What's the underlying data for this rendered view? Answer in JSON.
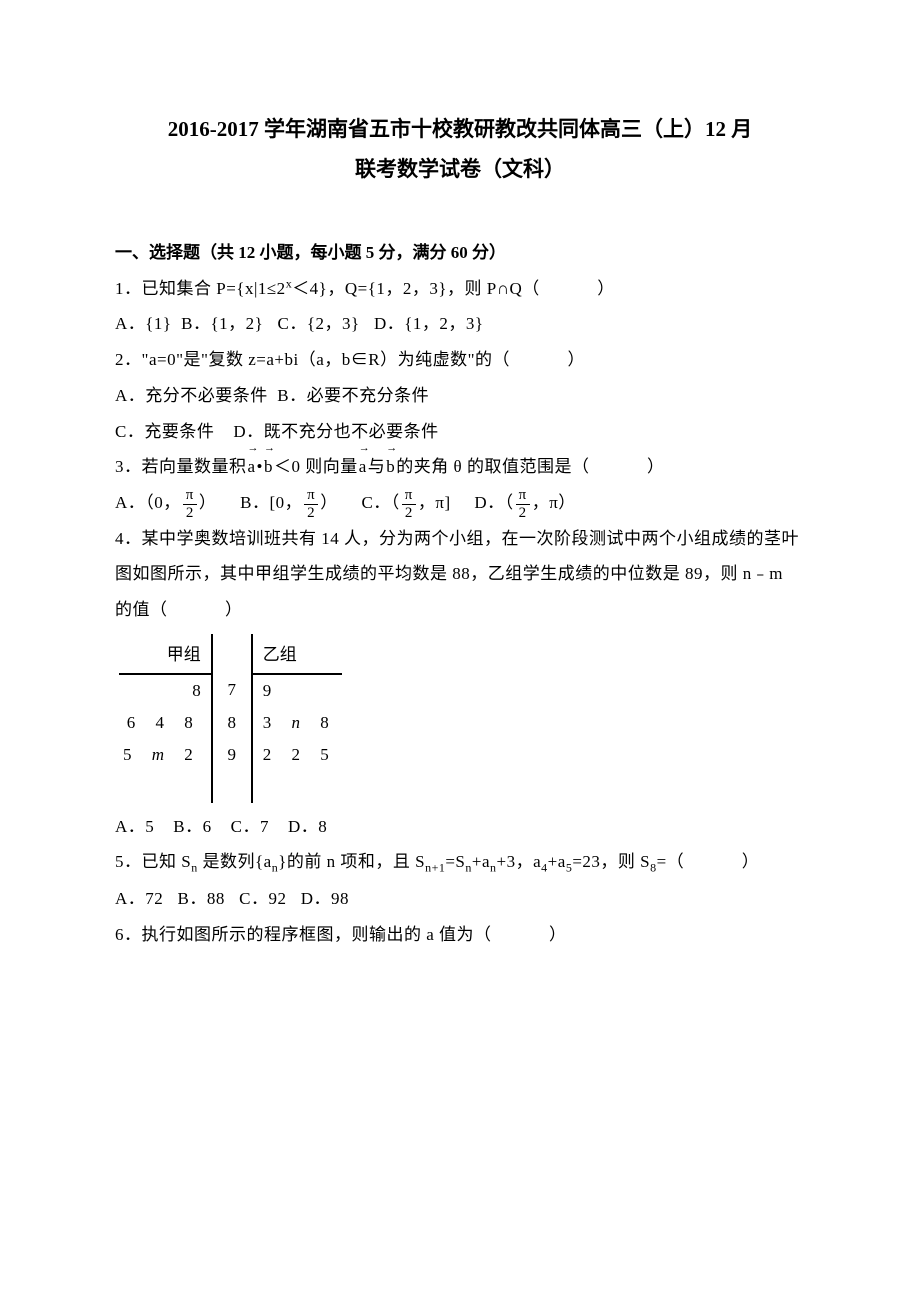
{
  "title": {
    "line1": "2016-2017 学年湖南省五市十校教研教改共同体高三（上）12 月",
    "line2": "联考数学试卷（文科）"
  },
  "section": "一、选择题（共 12 小题，每小题 5 分，满分 60 分）",
  "q1": {
    "stem_prefix": "1．已知集合 P={x|1≤2",
    "stem_mid": "＜4}，Q={1，2，3}，则 P∩Q",
    "optA": "A．{1}",
    "optB": "B．{1，2}",
    "optC": "C．{2，3}",
    "optD": "D．{1，2，3}"
  },
  "q2": {
    "stem": "2．\"a=0\"是\"复数 z=a+bi（a，b∈R）为纯虚数\"的",
    "optA": "A．充分不必要条件",
    "optB": "B．必要不充分条件",
    "optC": "C．充要条件",
    "optD": "D．既不充分也不必要条件"
  },
  "q3": {
    "stem_p1": "3．若向量数量积",
    "vec_a": "a",
    "dot": "•",
    "vec_b": "b",
    "stem_p2": "＜0 则向量",
    "stem_p3": "与",
    "stem_p4": "的夹角 θ 的取值范围是",
    "optA_p1": "A．（0，",
    "optA_p2": "）",
    "optB_p1": "B．[0，",
    "optB_p2": "）",
    "optC_p1": "C．（",
    "optC_p2": "，π]",
    "optD_p1": "D．（",
    "optD_p2": "，π）",
    "frac_num": "π",
    "frac_den": "2"
  },
  "q4": {
    "stem": "4．某中学奥数培训班共有 14 人，分为两个小组，在一次阶段测试中两个小组成绩的茎叶图如图所示，其中甲组学生成绩的平均数是 88，乙组学生成绩的中位数是 89，则 n﹣m 的值",
    "header_left": "甲组",
    "header_right": "乙组",
    "rows": [
      {
        "left": "8",
        "stem": "7",
        "right": "9"
      },
      {
        "left": "6 4 8",
        "stem": "8",
        "right": "3 n 8"
      },
      {
        "left": "5 m 2",
        "stem": "9",
        "right": "2 2 5"
      },
      {
        "left": "",
        "stem": "",
        "right": ""
      }
    ],
    "optA": "A．5",
    "optB": "B．6",
    "optC": "C．7",
    "optD": "D．8"
  },
  "q5": {
    "stem_p1": "5．已知 S",
    "stem_p2": " 是数列{a",
    "stem_p3": "}的前 n 项和，且 S",
    "stem_p4": "=S",
    "stem_p5": "+a",
    "stem_p6": "+3，a",
    "stem_p7": "+a",
    "stem_p8": "=23，则 S",
    "stem_p9": "=",
    "sub_n": "n",
    "sub_n1": "n+1",
    "sub_4": "4",
    "sub_5": "5",
    "sub_8": "8",
    "optA": "A．72",
    "optB": "B．88",
    "optC": "C．92",
    "optD": "D．98"
  },
  "q6": {
    "stem": "6．执行如图所示的程序框图，则输出的 a 值为"
  },
  "paren": "（　　）",
  "italic_n": "n",
  "italic_m": "m",
  "sup_x": "x"
}
